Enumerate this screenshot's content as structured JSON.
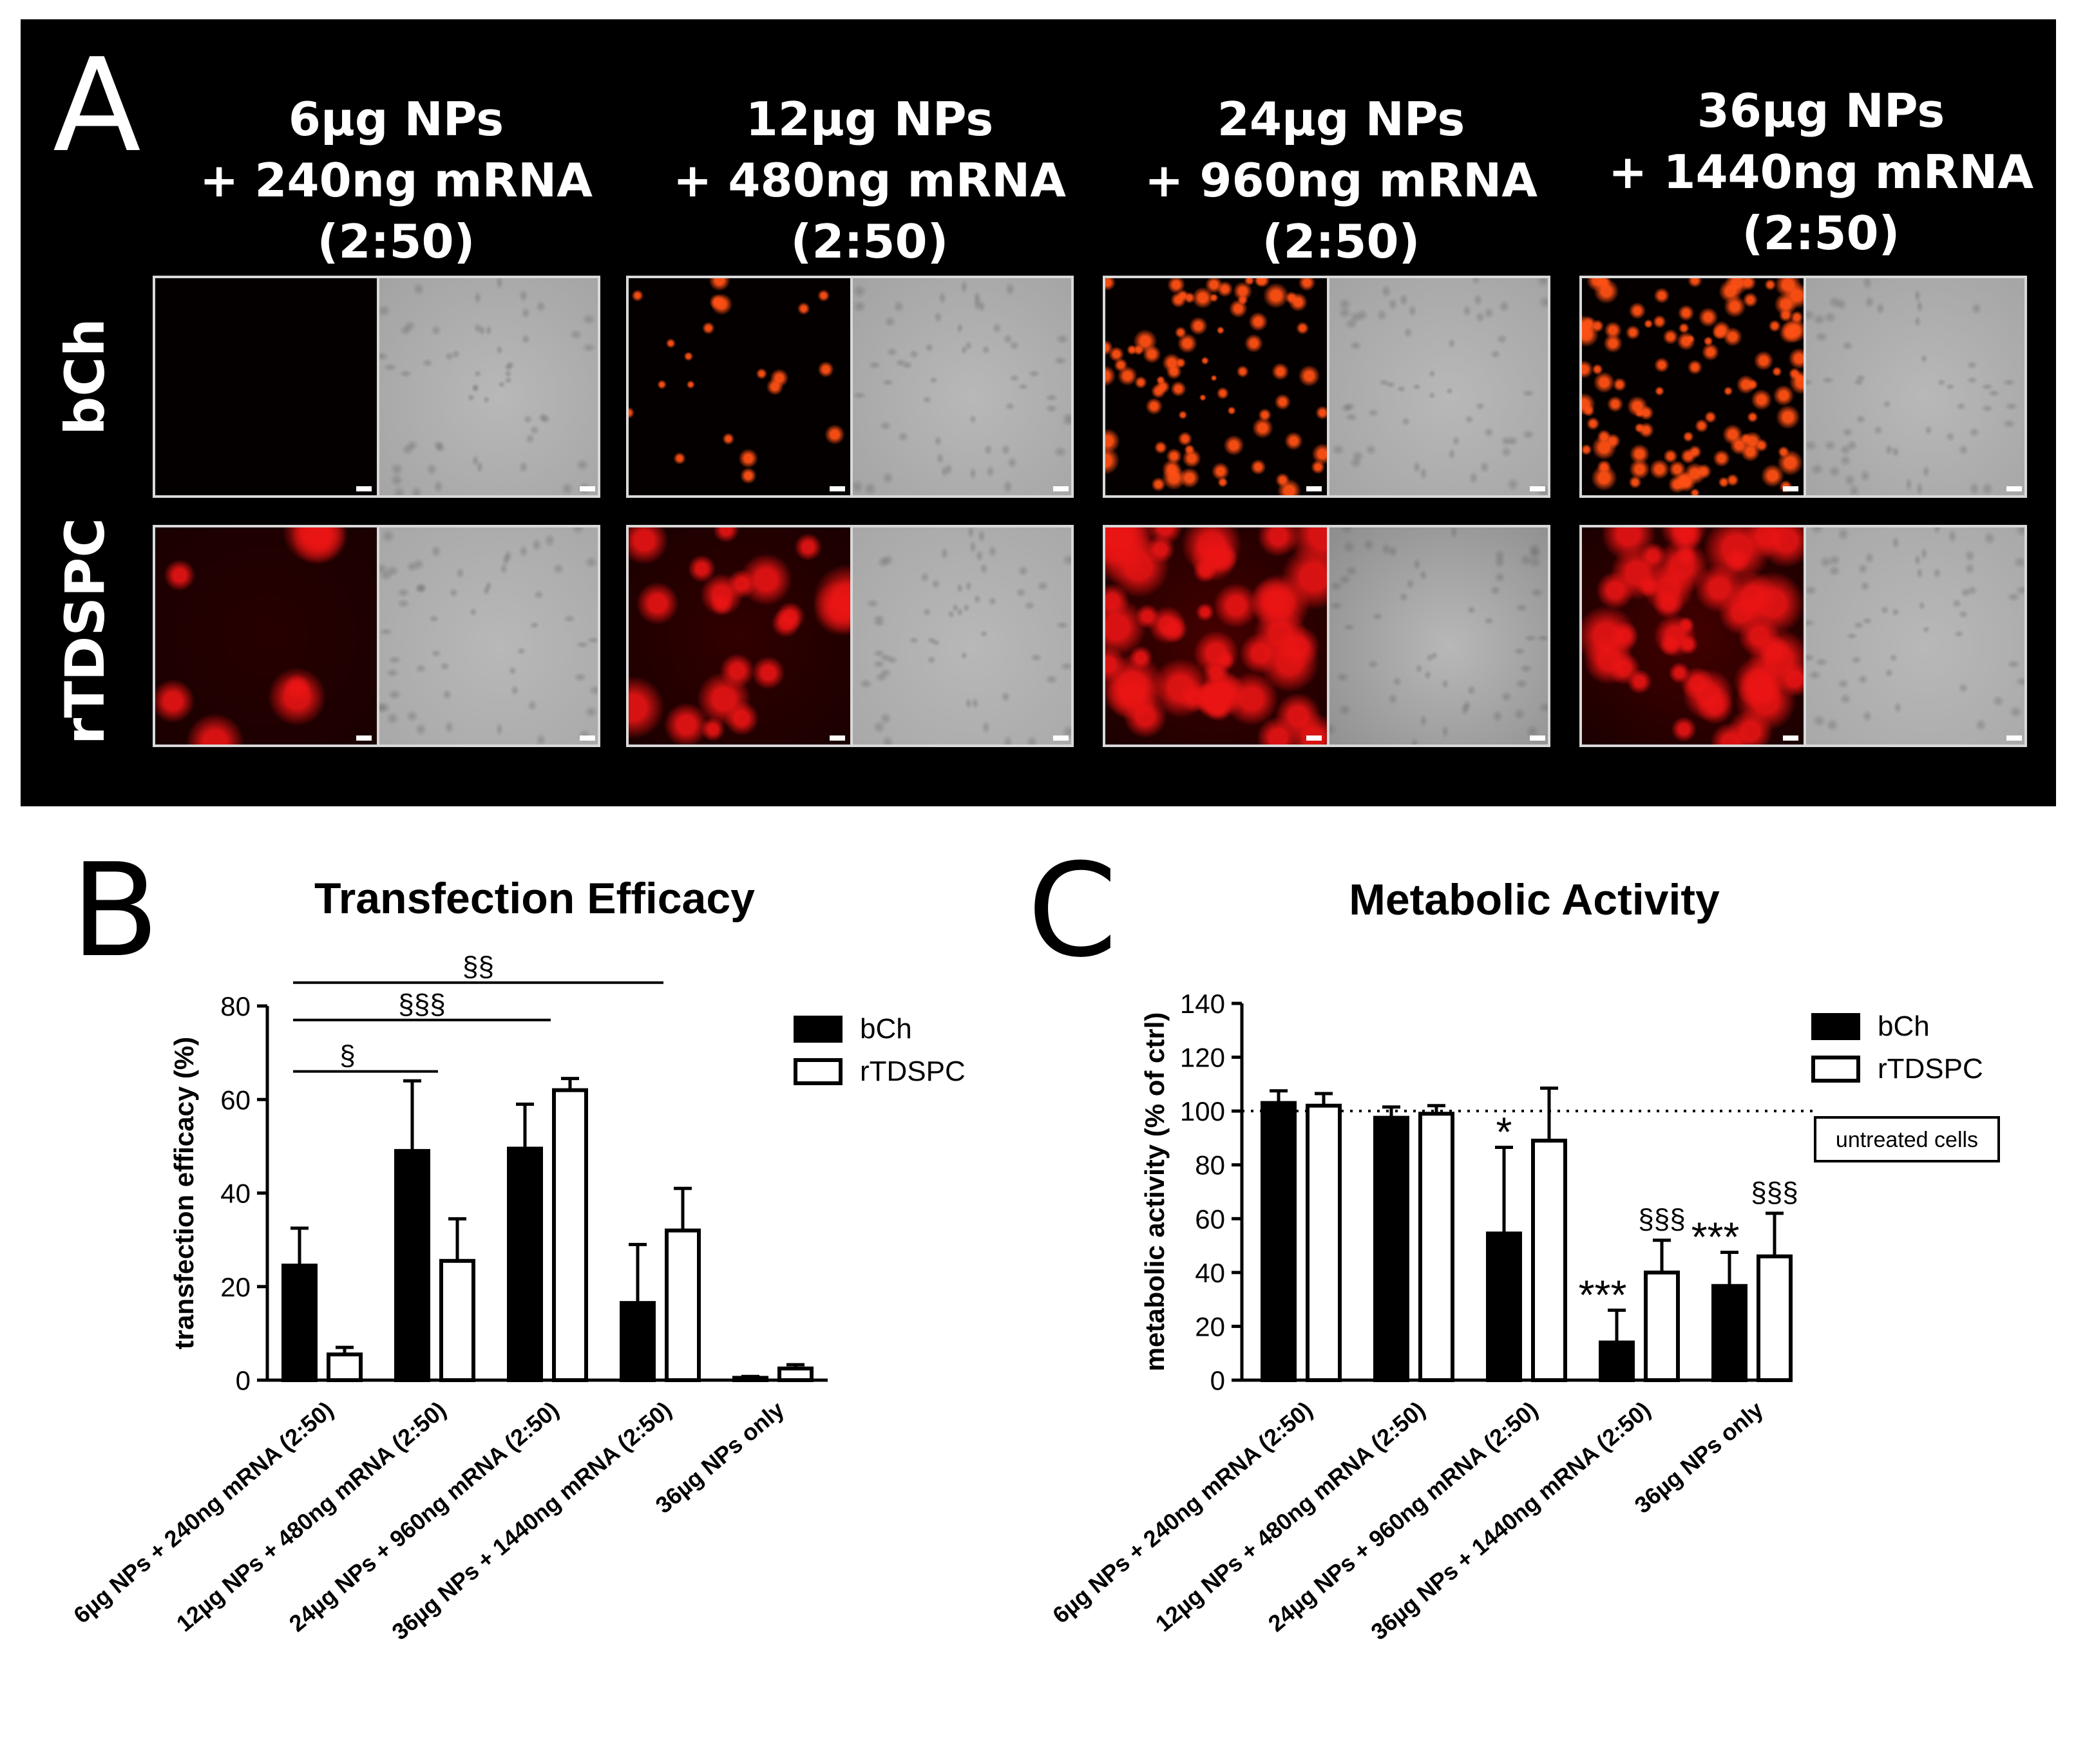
{
  "panelA": {
    "letter": "A",
    "columns": [
      {
        "line1": "6µg NPs",
        "line2": "+ 240ng mRNA",
        "line3": "(2:50)"
      },
      {
        "line1": "12µg NPs",
        "line2": "+ 480ng mRNA",
        "line3": "(2:50)"
      },
      {
        "line1": "24µg NPs",
        "line2": "+ 960ng mRNA",
        "line3": "(2:50)"
      },
      {
        "line1": "36µg NPs",
        "line2": "+ 1440ng mRNA",
        "line3": "(2:50)"
      }
    ],
    "rows": [
      "bCh",
      "rTDSPC"
    ],
    "colors": {
      "background": "#000000",
      "fluorescence": "#ff2a1a",
      "brightfield": "#9a9a9a"
    }
  },
  "panelB": {
    "letter": "B"
  },
  "panelC": {
    "letter": "C"
  },
  "chart_data": [
    {
      "type": "bar",
      "title": "Transfection Efficacy",
      "ylabel": "transfection efficacy (%)",
      "xlabel": "",
      "ylim": [
        0,
        80
      ],
      "yticks": [
        "0",
        "20",
        "40",
        "60",
        "80"
      ],
      "categories": [
        "6µg NPs + 240ng mRNA (2:50)",
        "12µg NPs + 480ng mRNA (2:50)",
        "24µg NPs + 960ng mRNA (2:50)",
        "36µg NPs + 1440ng mRNA (2:50)",
        "36µg NPs only"
      ],
      "series": [
        {
          "name": "bCh",
          "fill": "#000000",
          "values": [
            24.5,
            49,
            49.5,
            16.5,
            0.5
          ],
          "errors": [
            8,
            15,
            9.5,
            12.5,
            0.3
          ]
        },
        {
          "name": "rTDSPC",
          "fill": "#ffffff",
          "values": [
            5.5,
            25.5,
            62,
            32,
            2.5
          ],
          "errors": [
            1.5,
            9,
            2.5,
            9,
            0.8
          ]
        }
      ],
      "significance": [
        {
          "label": "§",
          "from": 0,
          "to": 1,
          "y": 66
        },
        {
          "label": "§§§",
          "from": 0,
          "to": 2,
          "y": 77
        },
        {
          "label": "§§",
          "from": 0,
          "to": 3,
          "y": 85
        }
      ],
      "legend": "top-right",
      "grid": false
    },
    {
      "type": "bar",
      "title": "Metabolic Activity",
      "ylabel": "metabolic activity (% of ctrl)",
      "xlabel": "",
      "ylim": [
        0,
        140
      ],
      "yticks": [
        "0",
        "20",
        "40",
        "60",
        "80",
        "100",
        "120",
        "140"
      ],
      "categories": [
        "6µg NPs + 240ng mRNA (2:50)",
        "12µg NPs + 480ng mRNA (2:50)",
        "24µg NPs + 960ng mRNA (2:50)",
        "36µg NPs + 1440ng mRNA (2:50)",
        "36µg NPs only"
      ],
      "series": [
        {
          "name": "bCh",
          "fill": "#000000",
          "values": [
            103,
            97.5,
            54.5,
            14,
            35
          ],
          "errors": [
            4.5,
            4,
            32,
            12,
            12.5
          ],
          "marks": [
            "",
            "",
            "*",
            "***",
            "***"
          ]
        },
        {
          "name": "rTDSPC",
          "fill": "#ffffff",
          "values": [
            102,
            99,
            89,
            40,
            46
          ],
          "errors": [
            4.5,
            3,
            19.5,
            12,
            16
          ],
          "marks": [
            "",
            "",
            "",
            "§§§",
            "§§§"
          ]
        }
      ],
      "reference_line": {
        "y": 100,
        "label": "untreated cells"
      },
      "legend": "top-right",
      "grid": false
    }
  ]
}
